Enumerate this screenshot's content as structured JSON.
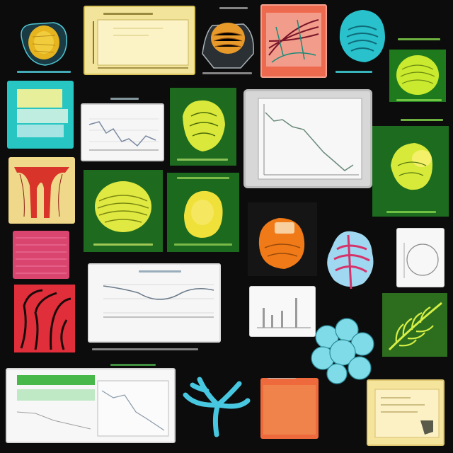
{
  "page": {
    "background": "#0c0c0c",
    "description_text": []
  },
  "palette": {
    "cream": "#f2e49a",
    "teal": "#27c6c2",
    "forest": "#1e6b1f",
    "lime": "#d7f04a",
    "coral": "#ee6a4f",
    "magenta": "#d9456f",
    "cyan": "#5fd1e0",
    "orange": "#f08a2a",
    "gray": "#c9c9c9"
  },
  "tiles": [
    {
      "name": "yellow-specimen-dark-tile",
      "icon": "specimen-icon"
    },
    {
      "name": "cream-chart-card",
      "icon": "line-chart-icon"
    },
    {
      "name": "orange-specimen-hands-tile",
      "icon": "specimen-icon"
    },
    {
      "name": "coral-anatomy-card",
      "icon": "anatomy-icon"
    },
    {
      "name": "teal-shell-tile",
      "icon": "shell-icon"
    },
    {
      "name": "lime-specimen-green-tile",
      "icon": "specimen-icon"
    },
    {
      "name": "teal-document-card",
      "icon": "document-icon"
    },
    {
      "name": "gray-line-chart-card",
      "icon": "line-chart-icon"
    },
    {
      "name": "green-specimen-card",
      "icon": "specimen-icon"
    },
    {
      "name": "gray-monitor-chart",
      "icon": "line-chart-icon"
    },
    {
      "name": "green-specimen-right-card",
      "icon": "specimen-icon"
    },
    {
      "name": "cream-red-arches-card",
      "icon": "anatomy-icon"
    },
    {
      "name": "green-brain-card",
      "icon": "brain-icon"
    },
    {
      "name": "green-blob-card",
      "icon": "specimen-icon"
    },
    {
      "name": "orange-specimen-tile",
      "icon": "specimen-icon"
    },
    {
      "name": "magenta-cyan-coral-tile",
      "icon": "coral-icon"
    },
    {
      "name": "white-circle-card",
      "icon": "circle-chart-icon"
    },
    {
      "name": "pink-texture-card",
      "icon": "texture-icon"
    },
    {
      "name": "white-wave-chart-card",
      "icon": "line-chart-icon"
    },
    {
      "name": "red-branches-tile",
      "icon": "branches-icon"
    },
    {
      "name": "white-bar-chart-card",
      "icon": "bar-chart-icon"
    },
    {
      "name": "lime-fern-card",
      "icon": "fern-icon"
    },
    {
      "name": "cyan-coral-tile",
      "icon": "coral-icon"
    },
    {
      "name": "white-green-document-card",
      "icon": "document-icon"
    },
    {
      "name": "cyan-branch-tile",
      "icon": "branch-icon"
    },
    {
      "name": "orange-texture-card",
      "icon": "texture-icon"
    },
    {
      "name": "cream-document-card",
      "icon": "document-icon"
    }
  ]
}
